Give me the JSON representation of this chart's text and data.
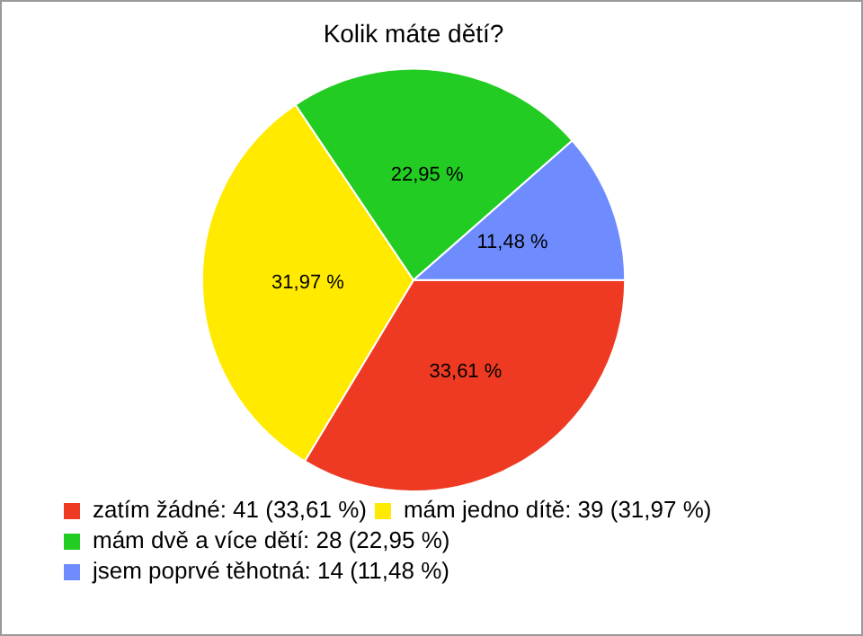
{
  "chart_data": {
    "type": "pie",
    "title": "Kolik máte dětí?",
    "categories": [
      "zatím žádné: 41 (33,61 %)",
      "mám jedno dítě: 39 (31,97 %)",
      "mám dvě a více dětí: 28 (22,95 %)",
      "jsem poprvé těhotná: 14 (11,48 %)"
    ],
    "values": [
      33.61,
      31.97,
      22.95,
      11.48
    ],
    "value_labels": [
      "33,61 %",
      "31,97 %",
      "22,95 %",
      "11,48 %"
    ],
    "colors": [
      "#ee3a22",
      "#ffea00",
      "#22cc22",
      "#6f8cff"
    ],
    "legend": "bottom"
  }
}
